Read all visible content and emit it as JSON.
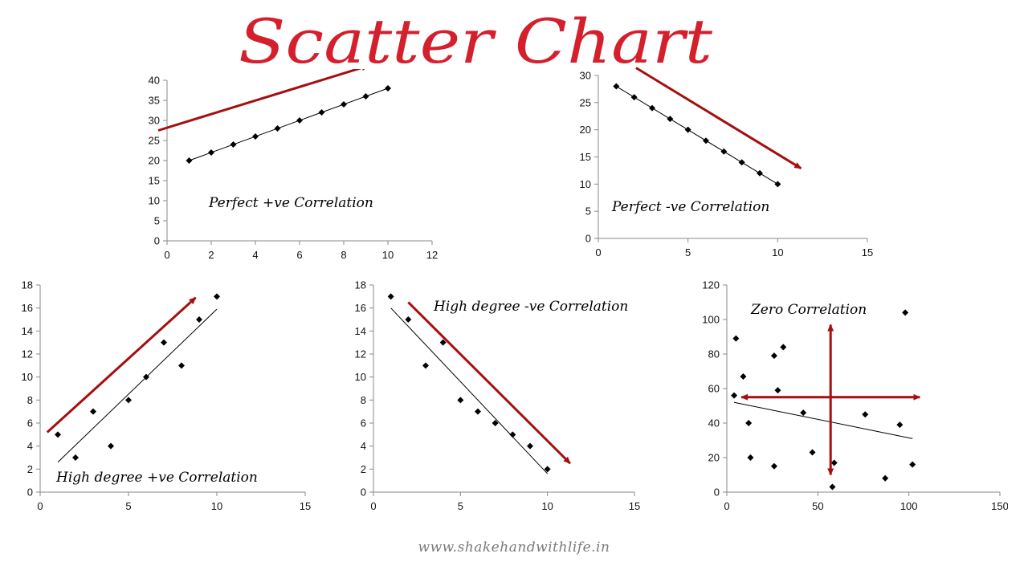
{
  "title": "Scatter Chart",
  "footer": "www.shakehandwithlife.in",
  "colors": {
    "title": "#d41f2c",
    "arrow": "#a50f0f",
    "points": "#000000",
    "axis": "#888888"
  },
  "chart_data": [
    {
      "type": "scatter",
      "annotation": "Perfect +ve Correlation",
      "xlim": [
        0,
        12
      ],
      "ylim": [
        0,
        40
      ],
      "xticks": [
        0,
        2,
        4,
        6,
        8,
        10,
        12
      ],
      "yticks": [
        0,
        5,
        10,
        15,
        20,
        25,
        30,
        35,
        40
      ],
      "x": [
        1,
        2,
        3,
        4,
        5,
        6,
        7,
        8,
        9,
        10
      ],
      "y": [
        20,
        22,
        24,
        26,
        28,
        30,
        32,
        34,
        36,
        38
      ],
      "trendline": [
        [
          1,
          20
        ],
        [
          10,
          38
        ]
      ],
      "arrows": [
        {
          "from": [
            -0.4,
            27.5
          ],
          "to": [
            9.1,
            43.6
          ]
        }
      ]
    },
    {
      "type": "scatter",
      "annotation": "Perfect -ve Correlation",
      "xlim": [
        0,
        15
      ],
      "ylim": [
        0,
        30
      ],
      "xticks": [
        0,
        5,
        10,
        15
      ],
      "yticks": [
        0,
        5,
        10,
        15,
        20,
        25,
        30
      ],
      "x": [
        1,
        2,
        3,
        4,
        5,
        6,
        7,
        8,
        9,
        10
      ],
      "y": [
        28,
        26,
        24,
        22,
        20,
        18,
        16,
        14,
        12,
        10
      ],
      "trendline": [
        [
          1,
          28
        ],
        [
          10,
          10
        ]
      ],
      "arrows": [
        {
          "from": [
            2.1,
            31.4
          ],
          "to": [
            11.3,
            12.9
          ]
        }
      ]
    },
    {
      "type": "scatter",
      "annotation": "High degree +ve Correlation",
      "xlim": [
        0,
        15
      ],
      "ylim": [
        0,
        18
      ],
      "xticks": [
        0,
        5,
        10,
        15
      ],
      "yticks": [
        0,
        2,
        4,
        6,
        8,
        10,
        12,
        14,
        16,
        18
      ],
      "x": [
        1,
        2,
        3,
        4,
        5,
        6,
        7,
        8,
        9,
        10
      ],
      "y": [
        5,
        3,
        7,
        4,
        8,
        10,
        13,
        11,
        15,
        17
      ],
      "trendline": [
        [
          1,
          2.6
        ],
        [
          10,
          15.9
        ]
      ],
      "arrows": [
        {
          "from": [
            0.4,
            5.2
          ],
          "to": [
            8.8,
            16.9
          ]
        }
      ]
    },
    {
      "type": "scatter",
      "annotation": "High degree -ve Correlation",
      "xlim": [
        0,
        15
      ],
      "ylim": [
        0,
        18
      ],
      "xticks": [
        0,
        5,
        10,
        15
      ],
      "yticks": [
        0,
        2,
        4,
        6,
        8,
        10,
        12,
        14,
        16,
        18
      ],
      "x": [
        1,
        2,
        3,
        4,
        5,
        6,
        7,
        8,
        9,
        10
      ],
      "y": [
        17,
        15,
        11,
        13,
        8,
        7,
        6,
        5,
        4,
        2
      ],
      "trendline": [
        [
          1,
          16
        ],
        [
          10,
          1.6
        ]
      ],
      "arrows": [
        {
          "from": [
            2.0,
            16.5
          ],
          "to": [
            11.3,
            2.5
          ]
        }
      ]
    },
    {
      "type": "scatter",
      "annotation": "Zero Correlation",
      "xlim": [
        0,
        150
      ],
      "ylim": [
        0,
        120
      ],
      "xticks": [
        0,
        50,
        100,
        150
      ],
      "yticks": [
        0,
        20,
        40,
        60,
        80,
        100,
        120
      ],
      "x": [
        4,
        5,
        9,
        12,
        13,
        26,
        26,
        28,
        31,
        42,
        47,
        58,
        59,
        76,
        87,
        95,
        98,
        102
      ],
      "y": [
        56,
        89,
        67,
        40,
        20,
        79,
        15,
        59,
        84,
        46,
        23,
        3,
        17,
        45,
        8,
        39,
        104,
        16
      ],
      "trendline": [
        [
          4,
          52
        ],
        [
          102,
          31
        ]
      ],
      "arrows": [
        {
          "from": [
            57,
            55
          ],
          "to": [
            57,
            97
          ]
        },
        {
          "from": [
            57,
            55
          ],
          "to": [
            57,
            10
          ]
        },
        {
          "from": [
            57,
            55
          ],
          "to": [
            8,
            55
          ]
        },
        {
          "from": [
            57,
            55
          ],
          "to": [
            106,
            55
          ]
        }
      ]
    }
  ]
}
